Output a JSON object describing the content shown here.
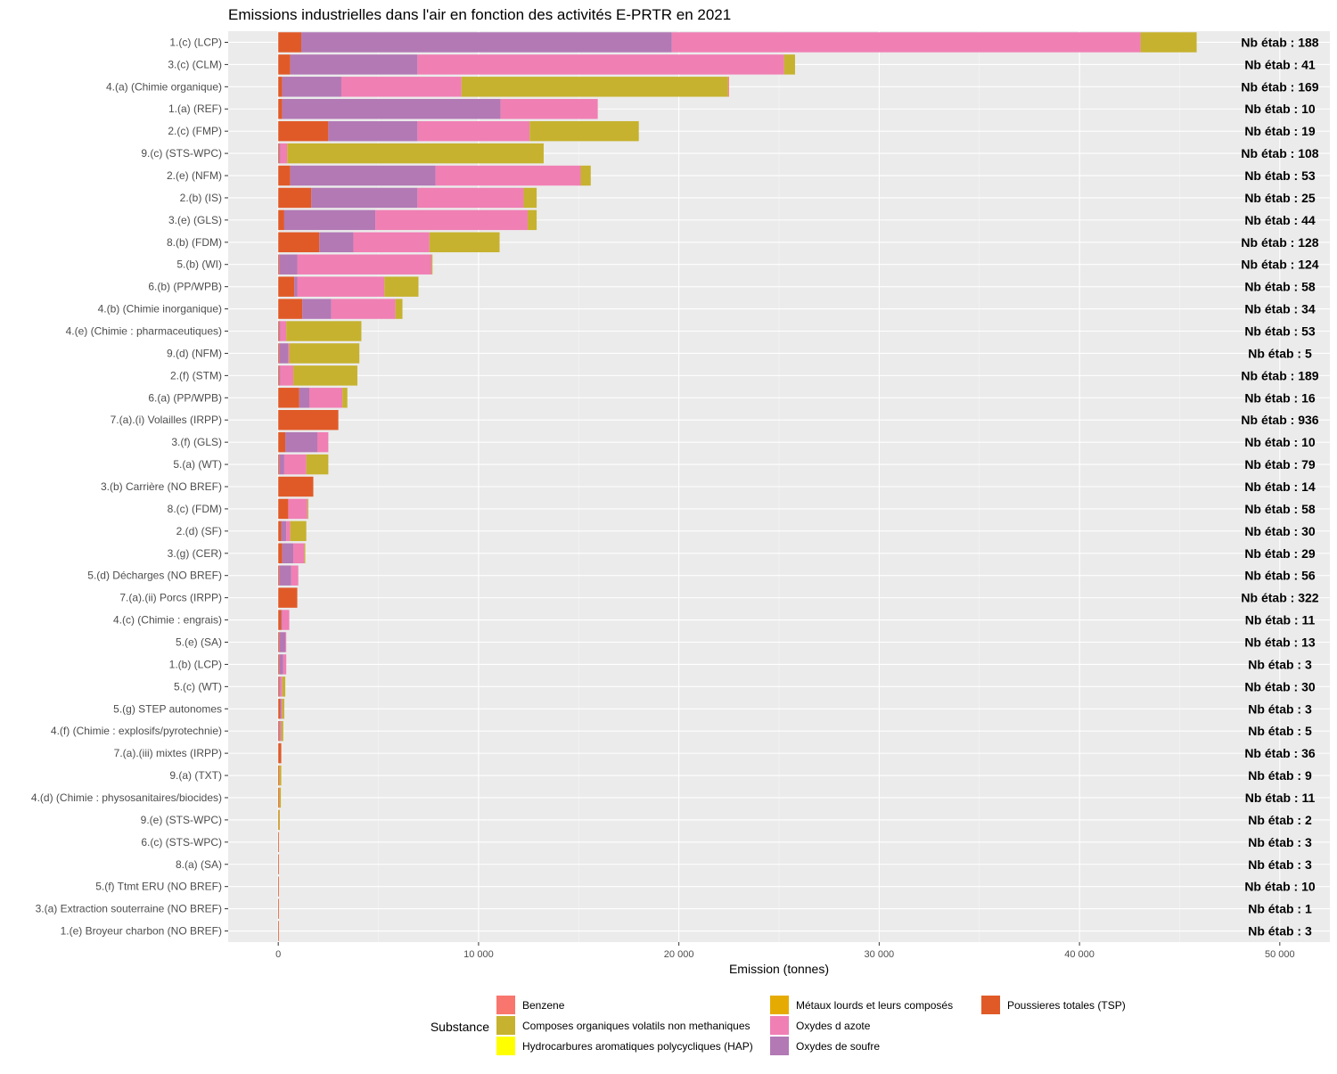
{
  "chart_data": {
    "type": "bar",
    "orientation": "horizontal",
    "stacked": true,
    "title": "Emissions industrielles dans l'air en fonction des activités E-PRTR en 2021",
    "xlabel": "Emission (tonnes)",
    "ylabel": "",
    "xlim": [
      -2500,
      52500
    ],
    "xticks": [
      0,
      10000,
      20000,
      30000,
      40000,
      50000
    ],
    "xtick_labels": [
      "0",
      "10 000",
      "20 000",
      "30 000",
      "40 000",
      "50 000"
    ],
    "grid": true,
    "legend": {
      "title": "Substance",
      "placement": "bottom",
      "items": [
        {
          "key": "benzene",
          "label": "Benzene",
          "color": "#F8766D"
        },
        {
          "key": "cov",
          "label": "Composes organiques volatils non methaniques",
          "color": "#C6B22E"
        },
        {
          "key": "hap",
          "label": "Hydrocarbures aromatiques polycycliques (HAP)",
          "color": "#FFFF00"
        },
        {
          "key": "metaux",
          "label": "Métaux lourds et leurs composés",
          "color": "#E6AB02"
        },
        {
          "key": "nox",
          "label": "Oxydes d azote",
          "color": "#F07FB4"
        },
        {
          "key": "sox",
          "label": "Oxydes de soufre",
          "color": "#B279B5"
        },
        {
          "key": "tsp",
          "label": "Poussieres totales (TSP)",
          "color": "#E05A28"
        }
      ]
    },
    "stack_order": [
      "tsp",
      "sox",
      "nox",
      "metaux",
      "hap",
      "cov",
      "benzene"
    ],
    "categories": [
      "1.(c) (LCP)",
      "3.(c) (CLM)",
      "4.(a) (Chimie organique)",
      "1.(a) (REF)",
      "2.(c) (FMP)",
      "9.(c) (STS-WPC)",
      "2.(e) (NFM)",
      "2.(b) (IS)",
      "3.(e) (GLS)",
      "8.(b) (FDM)",
      "5.(b) (WI)",
      "6.(b) (PP/WPB)",
      "4.(b) (Chimie inorganique)",
      "4.(e) (Chimie : pharmaceutiques)",
      "9.(d) (NFM)",
      "2.(f) (STM)",
      "6.(a) (PP/WPB)",
      "7.(a).(i) Volailles (IRPP)",
      "3.(f) (GLS)",
      "5.(a) (WT)",
      "3.(b) Carrière (NO BREF)",
      "8.(c) (FDM)",
      "2.(d) (SF)",
      "3.(g) (CER)",
      "5.(d) Décharges (NO BREF)",
      "7.(a).(ii) Porcs (IRPP)",
      "4.(c) (Chimie : engrais)",
      "5.(e) (SA)",
      "1.(b) (LCP)",
      "5.(c) (WT)",
      "5.(g) STEP autonomes",
      "4.(f) (Chimie : explosifs/pyrotechnie)",
      "7.(a).(iii) mixtes (IRPP)",
      "9.(a) (TXT)",
      "4.(d) (Chimie : physosanitaires/biocides)",
      "9.(e) (STS-WPC)",
      "6.(c) (STS-WPC)",
      "8.(a) (SA)",
      "5.(f) Ttmt ERU (NO BREF)",
      "3.(a) Extraction souterraine (NO BREF)",
      "1.(e) Broyeur charbon (NO BREF)"
    ],
    "counts": [
      "Nb étab : 188",
      "Nb étab : 41",
      "Nb étab : 169",
      "Nb étab : 10",
      "Nb étab : 19",
      "Nb étab : 108",
      "Nb étab : 53",
      "Nb étab : 25",
      "Nb étab : 44",
      "Nb étab : 128",
      "Nb étab : 124",
      "Nb étab : 58",
      "Nb étab : 34",
      "Nb étab : 53",
      "Nb étab : 5",
      "Nb étab : 189",
      "Nb étab : 16",
      "Nb étab : 936",
      "Nb étab : 10",
      "Nb étab : 79",
      "Nb étab : 14",
      "Nb étab : 58",
      "Nb étab : 30",
      "Nb étab : 29",
      "Nb étab : 56",
      "Nb étab : 322",
      "Nb étab : 11",
      "Nb étab : 13",
      "Nb étab : 3",
      "Nb étab : 30",
      "Nb étab : 3",
      "Nb étab : 5",
      "Nb étab : 36",
      "Nb étab : 9",
      "Nb étab : 11",
      "Nb étab : 2",
      "Nb étab : 3",
      "Nb étab : 3",
      "Nb étab : 10",
      "Nb étab : 1",
      "Nb étab : 3"
    ],
    "series": [
      {
        "key": "tsp",
        "values": [
          1150,
          600,
          200,
          200,
          2500,
          50,
          600,
          1650,
          300,
          2050,
          50,
          800,
          1200,
          50,
          50,
          50,
          1050,
          3000,
          350,
          50,
          1750,
          500,
          150,
          200,
          50,
          950,
          150,
          50,
          50,
          50,
          100,
          50,
          150,
          50,
          50,
          20,
          30,
          20,
          20,
          5,
          5
        ]
      },
      {
        "key": "sox",
        "values": [
          18500,
          6350,
          2950,
          10900,
          4450,
          50,
          7250,
          5300,
          4550,
          1700,
          900,
          150,
          1450,
          50,
          450,
          50,
          500,
          0,
          1600,
          250,
          0,
          0,
          250,
          550,
          600,
          0,
          50,
          300,
          200,
          50,
          50,
          50,
          0,
          0,
          0,
          0,
          0,
          0,
          0,
          0,
          0
        ]
      },
      {
        "key": "nox",
        "values": [
          23400,
          18300,
          6000,
          4850,
          5600,
          350,
          7250,
          5300,
          7600,
          3800,
          6700,
          4350,
          3200,
          300,
          50,
          650,
          1650,
          0,
          550,
          1100,
          0,
          950,
          200,
          550,
          350,
          0,
          350,
          50,
          150,
          100,
          50,
          50,
          0,
          0,
          0,
          0,
          0,
          0,
          0,
          0,
          0
        ]
      },
      {
        "key": "metaux",
        "values": [
          0,
          0,
          0,
          0,
          0,
          0,
          0,
          0,
          0,
          0,
          0,
          0,
          0,
          0,
          0,
          0,
          0,
          0,
          0,
          0,
          0,
          0,
          0,
          0,
          0,
          0,
          0,
          0,
          0,
          0,
          0,
          0,
          0,
          0,
          0,
          0,
          0,
          0,
          0,
          0,
          0
        ]
      },
      {
        "key": "hap",
        "values": [
          0,
          0,
          0,
          0,
          0,
          0,
          0,
          0,
          0,
          0,
          0,
          0,
          0,
          0,
          0,
          0,
          0,
          0,
          0,
          0,
          0,
          0,
          0,
          0,
          0,
          0,
          0,
          0,
          0,
          0,
          0,
          0,
          0,
          0,
          0,
          0,
          0,
          0,
          0,
          0,
          0
        ]
      },
      {
        "key": "cov",
        "values": [
          2800,
          550,
          13300,
          0,
          5450,
          12800,
          500,
          650,
          450,
          3500,
          50,
          1700,
          350,
          3750,
          3500,
          3200,
          250,
          0,
          0,
          1100,
          0,
          50,
          800,
          50,
          0,
          0,
          0,
          0,
          0,
          150,
          100,
          100,
          0,
          100,
          80,
          60,
          0,
          0,
          0,
          0,
          0
        ]
      },
      {
        "key": "benzene",
        "values": [
          0,
          0,
          50,
          0,
          0,
          0,
          0,
          0,
          0,
          0,
          0,
          0,
          0,
          0,
          0,
          0,
          0,
          0,
          0,
          0,
          0,
          0,
          0,
          0,
          0,
          0,
          0,
          0,
          0,
          0,
          0,
          0,
          0,
          0,
          0,
          0,
          0,
          0,
          0,
          0,
          0
        ]
      }
    ]
  }
}
